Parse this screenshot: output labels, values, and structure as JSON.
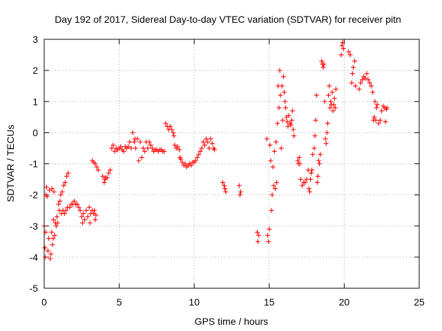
{
  "chart_data": {
    "type": "scatter",
    "title": "Day 192 of 2017, Sidereal Day-to-day VTEC variation (SDTVAR) for receiver pitn",
    "xlabel": "GPS time / hours",
    "ylabel": "SDTVAR / TECUs",
    "xlim": [
      0,
      25
    ],
    "ylim": [
      -5,
      3
    ],
    "xticks": [
      0,
      5,
      10,
      15,
      20,
      25
    ],
    "yticks": [
      -5,
      -4,
      -3,
      -2,
      -1,
      0,
      1,
      2,
      3
    ],
    "xtick_labels": [
      "0",
      "5",
      "10",
      "15",
      "20",
      "25"
    ],
    "ytick_labels": [
      "-5",
      "-4",
      "-3",
      "-2",
      "-1",
      "0",
      "1",
      "2",
      "3"
    ],
    "grid": true,
    "marker": "+",
    "color": "#ff0000",
    "series": [
      {
        "name": "SDTVAR",
        "points": [
          [
            0.0,
            -3.0
          ],
          [
            0.05,
            -3.7
          ],
          [
            0.08,
            -4.0
          ],
          [
            0.1,
            -3.2
          ],
          [
            0.12,
            -2.0
          ],
          [
            0.15,
            -1.75
          ],
          [
            0.2,
            -2.05
          ],
          [
            0.25,
            -3.8
          ],
          [
            0.3,
            -3.4
          ],
          [
            0.35,
            -1.85
          ],
          [
            0.4,
            -4.05
          ],
          [
            0.45,
            -3.9
          ],
          [
            0.5,
            -3.2
          ],
          [
            0.52,
            -1.8
          ],
          [
            0.55,
            -3.6
          ],
          [
            0.6,
            -3.4
          ],
          [
            0.62,
            -2.8
          ],
          [
            0.65,
            -1.9
          ],
          [
            0.7,
            -3.3
          ],
          [
            0.75,
            -2.9
          ],
          [
            0.8,
            -3.0
          ],
          [
            0.85,
            -2.7
          ],
          [
            0.9,
            -2.9
          ],
          [
            0.95,
            -2.3
          ],
          [
            1.0,
            -2.5
          ],
          [
            1.05,
            -2.2
          ],
          [
            1.1,
            -2.0
          ],
          [
            1.15,
            -2.6
          ],
          [
            1.2,
            -1.9
          ],
          [
            1.25,
            -2.5
          ],
          [
            1.3,
            -1.7
          ],
          [
            1.35,
            -2.6
          ],
          [
            1.4,
            -1.6
          ],
          [
            1.45,
            -2.5
          ],
          [
            1.5,
            -1.4
          ],
          [
            1.55,
            -2.4
          ],
          [
            1.6,
            -1.3
          ],
          [
            1.7,
            -2.4
          ],
          [
            1.8,
            -2.3
          ],
          [
            1.9,
            -2.3
          ],
          [
            2.0,
            -2.2
          ],
          [
            2.1,
            -2.3
          ],
          [
            2.2,
            -2.3
          ],
          [
            2.3,
            -2.4
          ],
          [
            2.4,
            -2.5
          ],
          [
            2.5,
            -2.7
          ],
          [
            2.55,
            -2.9
          ],
          [
            2.6,
            -2.6
          ],
          [
            2.7,
            -2.8
          ],
          [
            2.8,
            -2.5
          ],
          [
            2.9,
            -2.7
          ],
          [
            3.0,
            -2.4
          ],
          [
            3.05,
            -2.9
          ],
          [
            3.1,
            -2.6
          ],
          [
            3.2,
            -2.5
          ],
          [
            3.3,
            -2.6
          ],
          [
            3.35,
            -2.5
          ],
          [
            3.4,
            -2.8
          ],
          [
            3.45,
            -2.65
          ],
          [
            3.2,
            -0.9
          ],
          [
            3.3,
            -0.95
          ],
          [
            3.4,
            -1.0
          ],
          [
            3.5,
            -1.1
          ],
          [
            3.6,
            -1.2
          ],
          [
            3.9,
            -1.4
          ],
          [
            4.0,
            -1.6
          ],
          [
            4.05,
            -1.5
          ],
          [
            4.1,
            -1.45
          ],
          [
            4.2,
            -1.45
          ],
          [
            4.3,
            -1.3
          ],
          [
            4.4,
            -1.2
          ],
          [
            4.5,
            -0.5
          ],
          [
            4.6,
            -0.4
          ],
          [
            4.7,
            -0.6
          ],
          [
            4.8,
            -0.5
          ],
          [
            4.9,
            -0.55
          ],
          [
            5.0,
            -0.5
          ],
          [
            5.1,
            -0.45
          ],
          [
            5.2,
            -0.55
          ],
          [
            5.3,
            -0.6
          ],
          [
            5.4,
            -0.45
          ],
          [
            5.5,
            -0.5
          ],
          [
            5.6,
            -0.45
          ],
          [
            5.7,
            -0.3
          ],
          [
            5.8,
            -0.5
          ],
          [
            5.9,
            0.0
          ],
          [
            6.0,
            -0.3
          ],
          [
            6.05,
            -0.2
          ],
          [
            6.1,
            -0.5
          ],
          [
            6.2,
            -0.2
          ],
          [
            6.3,
            -0.9
          ],
          [
            6.4,
            -0.3
          ],
          [
            6.5,
            -0.8
          ],
          [
            6.6,
            -0.5
          ],
          [
            6.7,
            -0.6
          ],
          [
            6.8,
            -0.3
          ],
          [
            6.9,
            -0.5
          ],
          [
            7.0,
            -0.3
          ],
          [
            7.1,
            -0.4
          ],
          [
            7.2,
            -0.5
          ],
          [
            7.3,
            -0.6
          ],
          [
            7.4,
            -0.55
          ],
          [
            7.5,
            -0.55
          ],
          [
            7.6,
            -0.6
          ],
          [
            7.7,
            -0.55
          ],
          [
            7.8,
            -0.55
          ],
          [
            7.9,
            -0.6
          ],
          [
            8.0,
            -0.6
          ],
          [
            8.1,
            0.3
          ],
          [
            8.2,
            0.2
          ],
          [
            8.3,
            0.1
          ],
          [
            8.4,
            0.2
          ],
          [
            8.5,
            0.1
          ],
          [
            8.6,
            0.0
          ],
          [
            8.65,
            -0.1
          ],
          [
            8.7,
            -0.4
          ],
          [
            8.8,
            -0.5
          ],
          [
            8.9,
            -0.45
          ],
          [
            9.0,
            -0.55
          ],
          [
            9.05,
            -0.8
          ],
          [
            9.1,
            -0.85
          ],
          [
            9.2,
            -0.95
          ],
          [
            9.3,
            -1.05
          ],
          [
            9.4,
            -1.0
          ],
          [
            9.5,
            -1.1
          ],
          [
            9.6,
            -1.05
          ],
          [
            9.7,
            -1.0
          ],
          [
            9.8,
            -1.05
          ],
          [
            9.9,
            -0.95
          ],
          [
            10.0,
            -0.95
          ],
          [
            10.1,
            -0.9
          ],
          [
            10.2,
            -0.8
          ],
          [
            10.3,
            -0.7
          ],
          [
            10.4,
            -0.6
          ],
          [
            10.5,
            -0.5
          ],
          [
            10.6,
            -0.3
          ],
          [
            10.7,
            -0.4
          ],
          [
            10.8,
            -0.2
          ],
          [
            10.9,
            -0.3
          ],
          [
            11.0,
            -0.5
          ],
          [
            11.1,
            -0.2
          ],
          [
            11.2,
            -0.35
          ],
          [
            11.3,
            -0.5
          ],
          [
            11.35,
            -0.55
          ],
          [
            11.9,
            -1.6
          ],
          [
            12.0,
            -1.7
          ],
          [
            12.05,
            -1.8
          ],
          [
            12.1,
            -1.9
          ],
          [
            13.0,
            -1.7
          ],
          [
            13.05,
            -2.0
          ],
          [
            13.1,
            -1.9
          ],
          [
            14.2,
            -3.2
          ],
          [
            14.25,
            -3.5
          ],
          [
            14.3,
            -3.3
          ],
          [
            14.85,
            -0.2
          ],
          [
            14.9,
            -3.3
          ],
          [
            14.95,
            -3.5
          ],
          [
            15.0,
            -3.1
          ],
          [
            15.05,
            -0.4
          ],
          [
            15.1,
            -0.9
          ],
          [
            15.15,
            -2.5
          ],
          [
            15.2,
            -2.0
          ],
          [
            15.25,
            -1.1
          ],
          [
            15.3,
            -1.7
          ],
          [
            15.35,
            -0.6
          ],
          [
            15.4,
            -1.8
          ],
          [
            15.45,
            -0.3
          ],
          [
            15.5,
            -1.6
          ],
          [
            15.55,
            0.3
          ],
          [
            15.6,
            1.5
          ],
          [
            15.65,
            0.8
          ],
          [
            15.7,
            2.0
          ],
          [
            15.75,
            1.2
          ],
          [
            15.8,
            -0.5
          ],
          [
            15.85,
            1.5
          ],
          [
            15.9,
            0.4
          ],
          [
            15.95,
            1.8
          ],
          [
            16.0,
            1.3
          ],
          [
            16.05,
            1.0
          ],
          [
            16.1,
            0.8
          ],
          [
            16.15,
            0.5
          ],
          [
            16.2,
            0.35
          ],
          [
            16.25,
            0.2
          ],
          [
            16.3,
            0.55
          ],
          [
            16.4,
            0.3
          ],
          [
            16.45,
            0.25
          ],
          [
            16.5,
            0.4
          ],
          [
            16.55,
            0.7
          ],
          [
            16.6,
            0.1
          ],
          [
            16.65,
            -0.1
          ],
          [
            16.9,
            -0.9
          ],
          [
            16.95,
            -1.0
          ],
          [
            17.0,
            -0.8
          ],
          [
            17.05,
            -1.0
          ],
          [
            17.1,
            -1.5
          ],
          [
            17.2,
            -1.7
          ],
          [
            17.3,
            -1.6
          ],
          [
            17.4,
            -1.6
          ],
          [
            17.5,
            -1.5
          ],
          [
            17.6,
            -1.2
          ],
          [
            17.65,
            -1.8
          ],
          [
            17.7,
            -1.9
          ],
          [
            17.75,
            -1.5
          ],
          [
            17.8,
            -1.3
          ],
          [
            17.85,
            -1.2
          ],
          [
            17.9,
            -0.7
          ],
          [
            18.0,
            -0.5
          ],
          [
            18.05,
            -0.1
          ],
          [
            18.1,
            0.4
          ],
          [
            18.15,
            1.2
          ],
          [
            18.2,
            -1.6
          ],
          [
            18.25,
            -1.4
          ],
          [
            18.3,
            -0.9
          ],
          [
            18.35,
            -1.0
          ],
          [
            18.4,
            -0.7
          ],
          [
            18.5,
            2.3
          ],
          [
            18.55,
            2.2
          ],
          [
            18.6,
            2.1
          ],
          [
            18.65,
            2.2
          ],
          [
            18.7,
            1.0
          ],
          [
            18.75,
            -0.2
          ],
          [
            18.8,
            -0.35
          ],
          [
            18.85,
            0.0
          ],
          [
            18.9,
            0.3
          ],
          [
            18.95,
            1.2
          ],
          [
            19.0,
            1.5
          ],
          [
            19.05,
            0.8
          ],
          [
            19.1,
            1.0
          ],
          [
            19.15,
            0.9
          ],
          [
            19.2,
            1.3
          ],
          [
            19.25,
            0.7
          ],
          [
            19.3,
            0.9
          ],
          [
            19.35,
            1.1
          ],
          [
            19.4,
            0.8
          ],
          [
            19.45,
            1.4
          ],
          [
            19.8,
            2.5
          ],
          [
            19.85,
            2.8
          ],
          [
            19.9,
            2.9
          ],
          [
            19.95,
            2.7
          ],
          [
            20.3,
            2.6
          ],
          [
            20.4,
            2.5
          ],
          [
            20.5,
            1.6
          ],
          [
            20.55,
            1.9
          ],
          [
            20.6,
            2.1
          ],
          [
            20.7,
            2.3
          ],
          [
            20.75,
            1.5
          ],
          [
            21.0,
            1.4
          ],
          [
            21.1,
            1.6
          ],
          [
            21.2,
            1.7
          ],
          [
            21.3,
            1.8
          ],
          [
            21.4,
            1.75
          ],
          [
            21.5,
            1.9
          ],
          [
            21.6,
            1.7
          ],
          [
            21.7,
            1.6
          ],
          [
            21.8,
            1.5
          ],
          [
            21.9,
            1.3
          ],
          [
            21.95,
            0.4
          ],
          [
            22.0,
            0.5
          ],
          [
            22.05,
            1.0
          ],
          [
            22.1,
            0.4
          ],
          [
            22.15,
            0.8
          ],
          [
            22.2,
            0.9
          ],
          [
            22.3,
            0.3
          ],
          [
            22.4,
            0.4
          ],
          [
            22.5,
            0.7
          ],
          [
            22.6,
            0.85
          ],
          [
            22.7,
            0.8
          ],
          [
            22.75,
            0.35
          ],
          [
            22.8,
            0.75
          ],
          [
            22.85,
            0.8
          ]
        ]
      }
    ]
  }
}
